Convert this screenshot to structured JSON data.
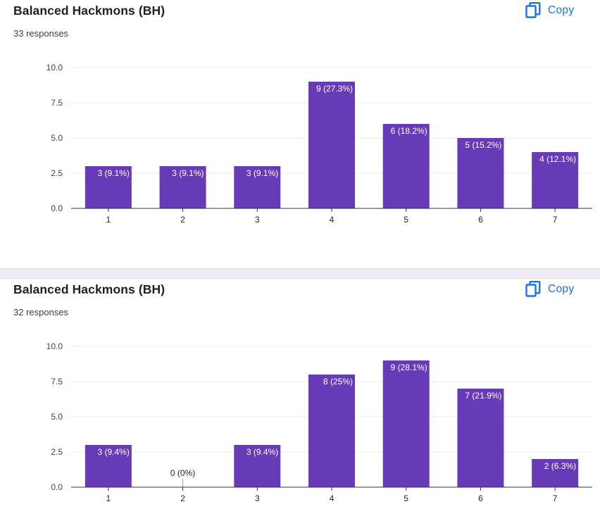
{
  "accent_color": "#673ab7",
  "link_color": "#1a73e8",
  "cards": [
    {
      "title": "Balanced Hackmons (BH)",
      "responses": "33 responses",
      "copy_label": "Copy",
      "copy_icon": "copy-icon"
    },
    {
      "title": "Balanced Hackmons (BH)",
      "responses": "32 responses",
      "copy_label": "Copy",
      "copy_icon": "copy-icon"
    }
  ],
  "chart_data": [
    {
      "type": "bar",
      "categories": [
        "1",
        "2",
        "3",
        "4",
        "5",
        "6",
        "7"
      ],
      "values": [
        3,
        3,
        3,
        9,
        6,
        5,
        4
      ],
      "data_labels": [
        "3 (9.1%)",
        "3 (9.1%)",
        "3 (9.1%)",
        "9 (27.3%)",
        "6 (18.2%)",
        "5 (15.2%)",
        "4 (12.1%)"
      ],
      "yticks": [
        "0.0",
        "2.5",
        "5.0",
        "7.5",
        "10.0"
      ],
      "ylim": [
        0,
        10
      ],
      "grid": true,
      "title": "Balanced Hackmons (BH)",
      "xlabel": "",
      "ylabel": ""
    },
    {
      "type": "bar",
      "categories": [
        "1",
        "2",
        "3",
        "4",
        "5",
        "6",
        "7"
      ],
      "values": [
        3,
        0,
        3,
        8,
        9,
        7,
        2
      ],
      "data_labels": [
        "3 (9.4%)",
        "0 (0%)",
        "3 (9.4%)",
        "8 (25%)",
        "9 (28.1%)",
        "7 (21.9%)",
        "2 (6.3%)"
      ],
      "yticks": [
        "0.0",
        "2.5",
        "5.0",
        "7.5",
        "10.0"
      ],
      "ylim": [
        0,
        10
      ],
      "grid": true,
      "title": "Balanced Hackmons (BH)",
      "xlabel": "",
      "ylabel": ""
    }
  ]
}
